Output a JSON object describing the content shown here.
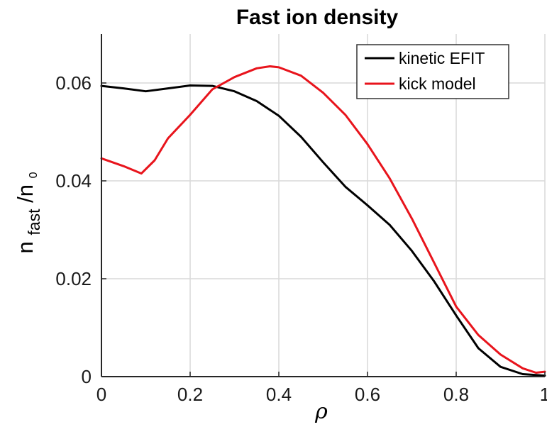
{
  "chart_data": {
    "type": "line",
    "title": "Fast ion density",
    "xlabel": "ρ",
    "ylabel": {
      "main": "n",
      "sub": "fast",
      "mid": "/n",
      "sub2": "0"
    },
    "xlim": [
      0,
      1
    ],
    "ylim": [
      0,
      0.07
    ],
    "xticks": [
      0,
      0.2,
      0.4,
      0.6,
      0.8,
      1
    ],
    "xtick_labels": [
      "0",
      "0.2",
      "0.4",
      "0.6",
      "0.8",
      "1"
    ],
    "yticks": [
      0,
      0.02,
      0.04,
      0.06
    ],
    "ytick_labels": [
      "0",
      "0.02",
      "0.04",
      "0.06"
    ],
    "grid": true,
    "legend_position": "top-right",
    "series": [
      {
        "name": "kinetic EFIT",
        "color": "#000000",
        "x": [
          0,
          0.05,
          0.1,
          0.15,
          0.2,
          0.25,
          0.3,
          0.35,
          0.4,
          0.45,
          0.5,
          0.55,
          0.6,
          0.65,
          0.7,
          0.75,
          0.8,
          0.85,
          0.9,
          0.95,
          1.0
        ],
        "y": [
          0.0594,
          0.0589,
          0.0583,
          0.0589,
          0.0595,
          0.0594,
          0.0583,
          0.0563,
          0.0533,
          0.049,
          0.0438,
          0.0388,
          0.035,
          0.031,
          0.0257,
          0.0195,
          0.0125,
          0.0058,
          0.002,
          0.0005,
          0.0002
        ]
      },
      {
        "name": "kick model",
        "color": "#e8141c",
        "x": [
          0,
          0.05,
          0.09,
          0.12,
          0.15,
          0.2,
          0.25,
          0.3,
          0.35,
          0.38,
          0.4,
          0.45,
          0.5,
          0.55,
          0.6,
          0.65,
          0.7,
          0.75,
          0.8,
          0.85,
          0.9,
          0.95,
          0.98,
          1.0
        ],
        "y": [
          0.0446,
          0.043,
          0.0415,
          0.0442,
          0.0487,
          0.0535,
          0.0587,
          0.0612,
          0.063,
          0.0634,
          0.0632,
          0.0615,
          0.058,
          0.0535,
          0.0475,
          0.0405,
          0.0323,
          0.0233,
          0.0143,
          0.0085,
          0.0045,
          0.0017,
          0.0008,
          0.001
        ]
      }
    ]
  }
}
